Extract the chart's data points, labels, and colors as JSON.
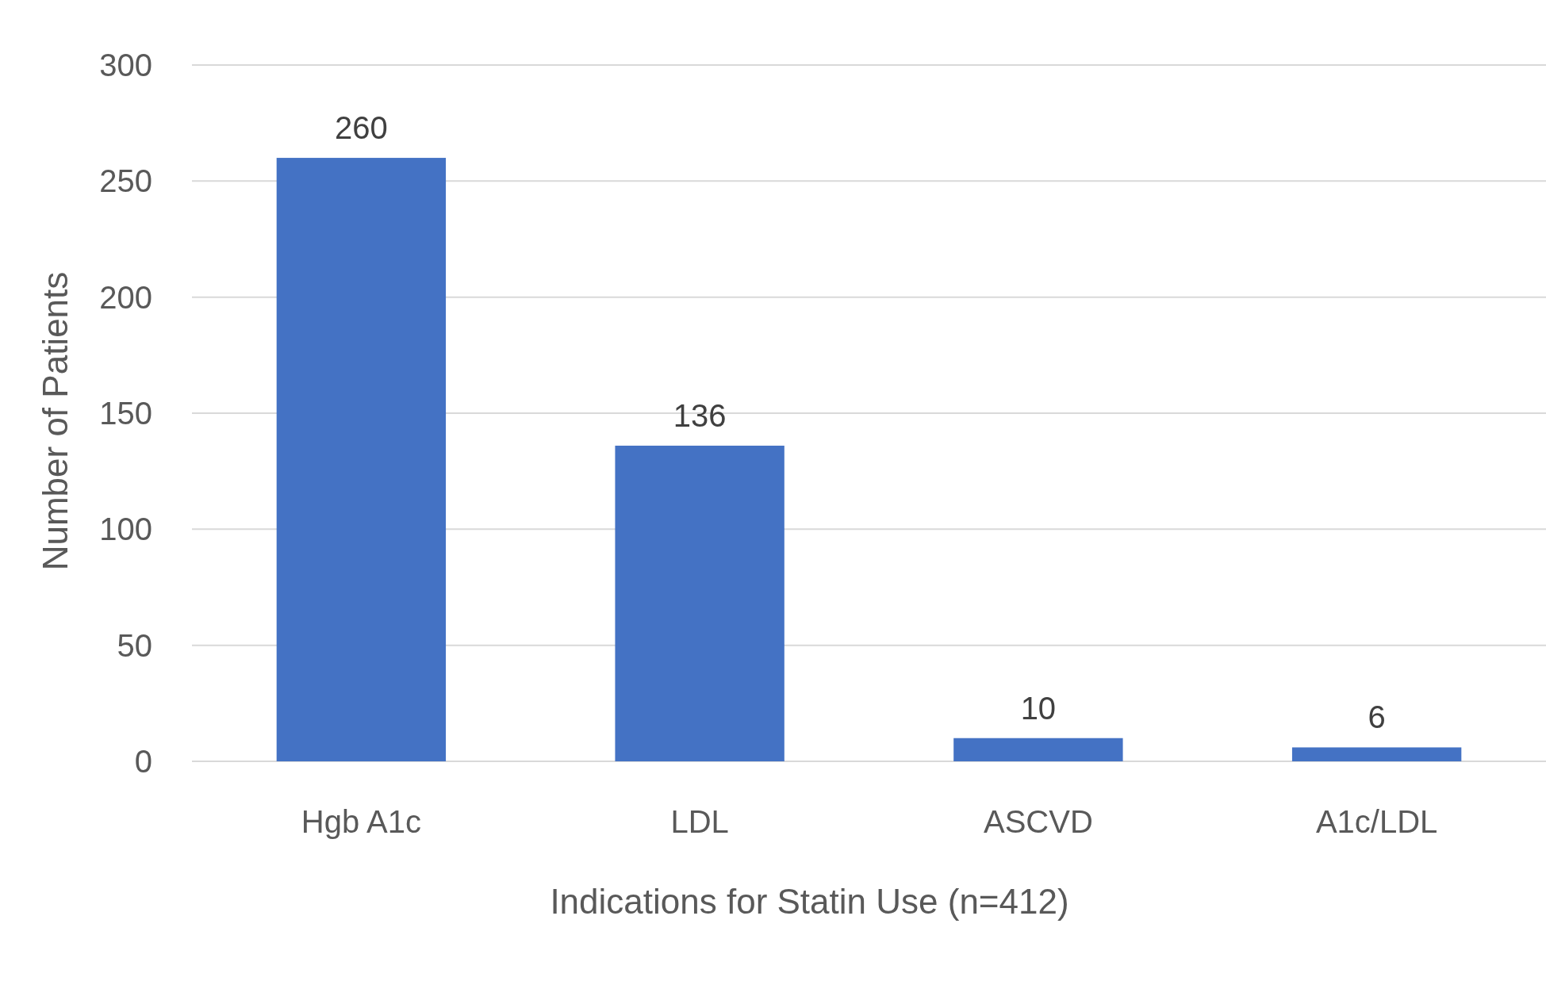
{
  "chart_data": {
    "type": "bar",
    "xlabel": "Indications for Statin Use (n=412)",
    "ylabel": "Number of Patients",
    "categories": [
      "Hgb A1c",
      "LDL",
      "ASCVD",
      "A1c/LDL"
    ],
    "values": [
      260,
      136,
      10,
      6
    ],
    "color": "#4472c4",
    "ylim": [
      0,
      300
    ],
    "yticks": [
      0,
      50,
      100,
      150,
      200,
      250,
      300
    ],
    "grid": "y",
    "data_labels": true
  }
}
